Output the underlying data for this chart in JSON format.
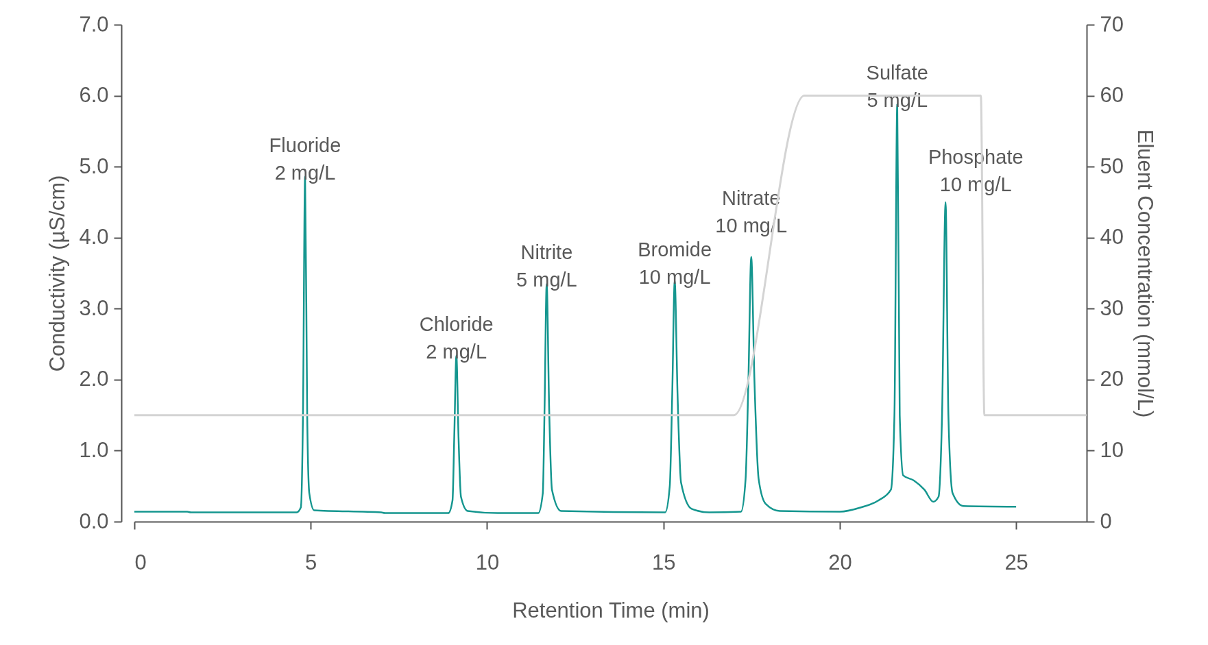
{
  "chart_data": {
    "type": "line",
    "xlabel": "Retention Time (min)",
    "ylabel": "Conductivity (µS/cm)",
    "y2label": "Eluent Concentration (mmol/L)",
    "xlim": [
      0,
      27
    ],
    "xticks": [
      0,
      5,
      10,
      15,
      20,
      25
    ],
    "ylim": [
      0,
      7
    ],
    "yticks": [
      {
        "value": 0,
        "label": "0.0"
      },
      {
        "value": 1,
        "label": "1.0"
      },
      {
        "value": 2,
        "label": "2.0"
      },
      {
        "value": 3,
        "label": "3.0"
      },
      {
        "value": 4,
        "label": "4.0"
      },
      {
        "value": 5,
        "label": "5.0"
      },
      {
        "value": 6,
        "label": "6.0"
      },
      {
        "value": 7,
        "label": "7.0"
      }
    ],
    "y2lim": [
      0,
      70
    ],
    "y2ticks": [
      0,
      10,
      20,
      30,
      40,
      50,
      60,
      70
    ],
    "grid": false,
    "marker": "none",
    "line_style": "solid",
    "series": [
      {
        "color": "#d4d4d4",
        "axis": "y2",
        "x": [
          0,
          17,
          19,
          24,
          24.1,
          27
        ],
        "values": [
          15,
          15,
          60,
          60,
          15,
          15
        ]
      },
      {
        "color": "#15968f",
        "x": [
          0,
          1.5,
          1.6,
          4.6,
          4.72,
          4.78,
          4.84,
          4.9,
          4.96,
          5.1,
          7,
          7.1,
          8.9,
          9.02,
          9.07,
          9.13,
          9.19,
          9.26,
          9.45,
          10.3,
          11.45,
          11.58,
          11.63,
          11.69,
          11.76,
          11.84,
          12.1,
          15.05,
          15.18,
          15.25,
          15.32,
          15.4,
          15.5,
          15.8,
          16.3,
          17.2,
          17.33,
          17.41,
          17.49,
          17.58,
          17.7,
          17.9,
          18.3,
          20,
          20.6,
          21.1,
          21.45,
          21.55,
          21.63,
          21.7,
          21.8,
          22.1,
          22.4,
          22.65,
          22.8,
          22.9,
          23,
          23.08,
          23.2,
          23.5,
          25
        ],
        "values": [
          0.14,
          0.14,
          0.13,
          0.13,
          0.2,
          1.5,
          4.86,
          1.5,
          0.4,
          0.16,
          0.13,
          0.12,
          0.12,
          0.3,
          1.2,
          2.34,
          1.2,
          0.35,
          0.15,
          0.12,
          0.12,
          0.4,
          1.6,
          3.35,
          1.6,
          0.45,
          0.15,
          0.13,
          0.5,
          1.8,
          3.39,
          1.8,
          0.55,
          0.18,
          0.13,
          0.14,
          0.6,
          2.0,
          3.73,
          2.0,
          0.6,
          0.25,
          0.15,
          0.14,
          0.2,
          0.3,
          0.45,
          1.5,
          5.88,
          1.5,
          0.65,
          0.58,
          0.45,
          0.28,
          0.35,
          1.5,
          4.5,
          1.5,
          0.4,
          0.22,
          0.21
        ]
      }
    ],
    "annotations": [
      {
        "text": "Fluoride\n2 mg/L",
        "x": 4.84,
        "y": 4.86
      },
      {
        "text": "Chloride\n2 mg/L",
        "x": 9.13,
        "y": 2.34
      },
      {
        "text": "Nitrite\n5 mg/L",
        "x": 11.69,
        "y": 3.35
      },
      {
        "text": "Bromide\n10 mg/L",
        "x": 15.32,
        "y": 3.39
      },
      {
        "text": "Nitrate\n10 mg/L",
        "x": 17.49,
        "y": 3.73
      },
      {
        "text": "Sulfate\n5 mg/L",
        "x": 21.63,
        "y": 5.88
      },
      {
        "text": "Phosphate\n10 mg/L",
        "x": 23,
        "y": 4.5
      }
    ]
  }
}
